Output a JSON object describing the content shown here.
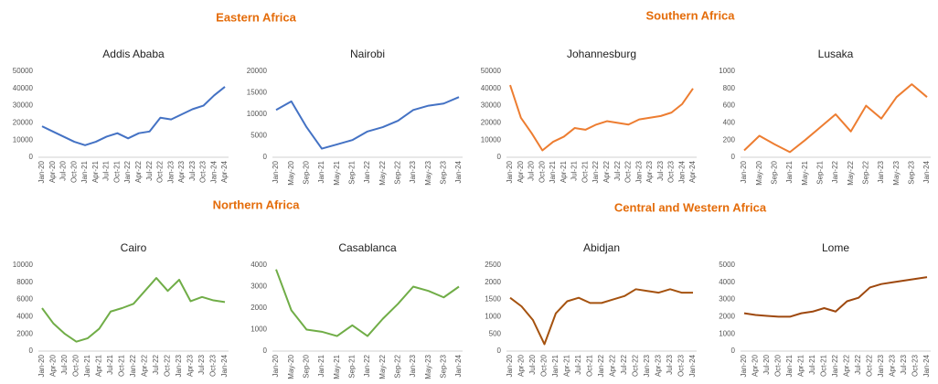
{
  "sections": [
    "Eastern Africa",
    "Southern Africa",
    "Northern Africa",
    "Central and Western  Africa"
  ],
  "chart_data": [
    {
      "type": "line",
      "title": "Addis Ababa",
      "color": "#4472c4",
      "categories": [
        "Jan-20",
        "Apr-20",
        "Jul-20",
        "Oct-20",
        "Jan-21",
        "Apr-21",
        "Jul-21",
        "Oct-21",
        "Jan-22",
        "Apr-22",
        "Jul-22",
        "Oct-22",
        "Jan-23",
        "Apr-23",
        "Jul-23",
        "Oct-23",
        "Jan-24",
        "Apr-24"
      ],
      "values": [
        18000,
        15000,
        12000,
        9000,
        7000,
        9000,
        12000,
        14000,
        11000,
        14000,
        15000,
        23000,
        22000,
        25000,
        28000,
        30000,
        36000,
        41000
      ],
      "ylim": [
        0,
        50000
      ],
      "yticks": [
        0,
        10000,
        20000,
        30000,
        40000,
        50000
      ]
    },
    {
      "type": "line",
      "title": "Nairobi",
      "color": "#4472c4",
      "categories": [
        "Jan-20",
        "May-20",
        "Sep-20",
        "Jan-21",
        "May-21",
        "Sep-21",
        "Jan-22",
        "May-22",
        "Sep-22",
        "Jan-23",
        "May-23",
        "Sep-23",
        "Jan-24"
      ],
      "values": [
        11000,
        13000,
        7000,
        2000,
        3000,
        4000,
        6000,
        7000,
        8500,
        11000,
        12000,
        12500,
        14000
      ],
      "ylim": [
        0,
        20000
      ],
      "yticks": [
        0,
        5000,
        10000,
        15000,
        20000
      ]
    },
    {
      "type": "line",
      "title": "Johannesburg",
      "color": "#ed7d31",
      "categories": [
        "Jan-20",
        "Apr-20",
        "Jul-20",
        "Oct-20",
        "Jan-21",
        "Apr-21",
        "Jul-21",
        "Oct-21",
        "Jan-22",
        "Apr-22",
        "Jul-22",
        "Oct-22",
        "Jan-23",
        "Apr-23",
        "Jul-23",
        "Oct-23",
        "Jan-24",
        "Apr-24"
      ],
      "values": [
        42000,
        23000,
        14000,
        4000,
        9000,
        12000,
        17000,
        16000,
        19000,
        21000,
        20000,
        19000,
        22000,
        23000,
        24000,
        26000,
        31000,
        40000
      ],
      "ylim": [
        0,
        50000
      ],
      "yticks": [
        0,
        10000,
        20000,
        30000,
        40000,
        50000
      ]
    },
    {
      "type": "line",
      "title": "Lusaka",
      "color": "#ed7d31",
      "categories": [
        "Jan-20",
        "May-20",
        "Sep-20",
        "Jan-21",
        "May-21",
        "Sep-21",
        "Jan-22",
        "May-22",
        "Sep-22",
        "Jan-23",
        "May-23",
        "Sep-23",
        "Jan-24"
      ],
      "values": [
        80,
        250,
        150,
        60,
        200,
        350,
        500,
        300,
        600,
        450,
        700,
        850,
        700
      ],
      "ylim": [
        0,
        1000
      ],
      "yticks": [
        0,
        200,
        400,
        600,
        800,
        1000
      ]
    },
    {
      "type": "line",
      "title": "Cairo",
      "color": "#70ad47",
      "categories": [
        "Jan-20",
        "Apr-20",
        "Jul-20",
        "Oct-20",
        "Jan-21",
        "Apr-21",
        "Jul-21",
        "Oct-21",
        "Jan-22",
        "Apr-22",
        "Jul-22",
        "Oct-22",
        "Jan-23",
        "Apr-23",
        "Jul-23",
        "Oct-23",
        "Jan-24"
      ],
      "values": [
        5000,
        3200,
        2000,
        1100,
        1500,
        2600,
        4600,
        5000,
        5500,
        7000,
        8500,
        7000,
        8300,
        5800,
        6300,
        5900,
        5700
      ],
      "ylim": [
        0,
        10000
      ],
      "yticks": [
        0,
        2000,
        4000,
        6000,
        8000,
        10000
      ]
    },
    {
      "type": "line",
      "title": "Casablanca",
      "color": "#70ad47",
      "categories": [
        "Jan-20",
        "May-20",
        "Sep-20",
        "Jan-21",
        "May-21",
        "Sep-21",
        "Jan-22",
        "May-22",
        "Sep-22",
        "Jan-23",
        "May-23",
        "Sep-23",
        "Jan-24"
      ],
      "values": [
        3800,
        1900,
        1000,
        900,
        700,
        1200,
        700,
        1500,
        2200,
        3000,
        2800,
        2500,
        3000
      ],
      "ylim": [
        0,
        4000
      ],
      "yticks": [
        0,
        1000,
        2000,
        3000,
        4000
      ]
    },
    {
      "type": "line",
      "title": "Abidjan",
      "color": "#a5520f",
      "categories": [
        "Jan-20",
        "Apr-20",
        "Jul-20",
        "Oct-20",
        "Jan-21",
        "Apr-21",
        "Jul-21",
        "Oct-21",
        "Jan-22",
        "Apr-22",
        "Jul-22",
        "Oct-22",
        "Jan-23",
        "Apr-23",
        "Jul-23",
        "Oct-23",
        "Jan-24"
      ],
      "values": [
        1550,
        1300,
        900,
        200,
        1100,
        1450,
        1550,
        1400,
        1400,
        1500,
        1600,
        1800,
        1750,
        1700,
        1800,
        1700,
        1700
      ],
      "ylim": [
        0,
        2500
      ],
      "yticks": [
        0,
        500,
        1000,
        1500,
        2000,
        2500
      ]
    },
    {
      "type": "line",
      "title": "Lome",
      "color": "#9e480e",
      "categories": [
        "Jan-20",
        "Apr-20",
        "Jul-20",
        "Oct-20",
        "Jan-21",
        "Apr-21",
        "Jul-21",
        "Oct-21",
        "Jan-22",
        "Apr-22",
        "Jul-22",
        "Oct-22",
        "Jan-23",
        "Apr-23",
        "Jul-23",
        "Oct-23",
        "Jan-24"
      ],
      "values": [
        2200,
        2100,
        2050,
        2000,
        2000,
        2200,
        2300,
        2500,
        2300,
        2900,
        3100,
        3700,
        3900,
        4000,
        4100,
        4200,
        4300
      ],
      "ylim": [
        0,
        5000
      ],
      "yticks": [
        0,
        1000,
        2000,
        3000,
        4000,
        5000
      ]
    }
  ]
}
